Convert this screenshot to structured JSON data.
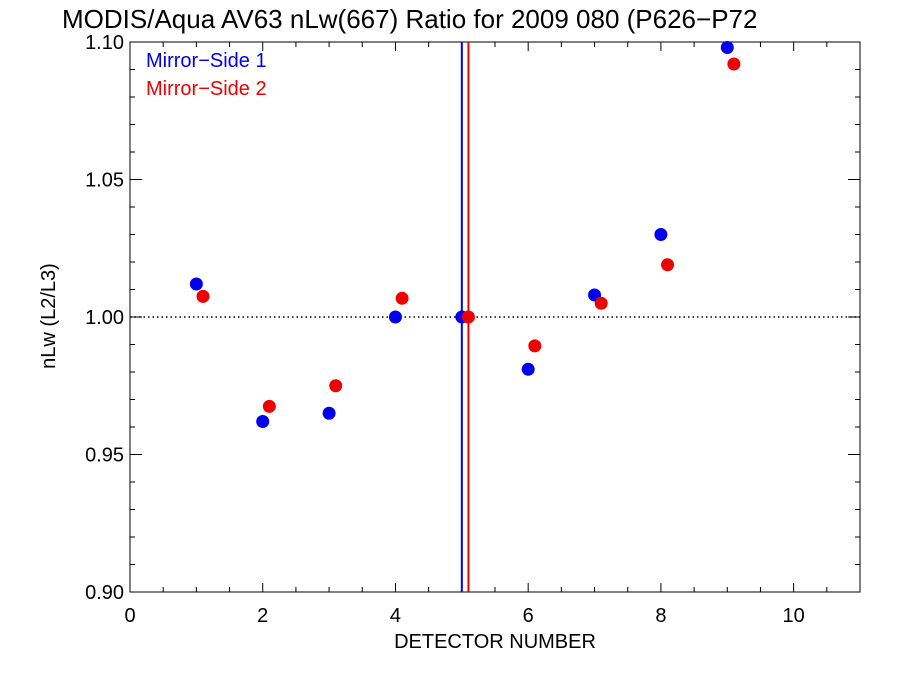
{
  "chart_data": {
    "type": "scatter",
    "title": "MODIS/Aqua AV63 nLw(667) Ratio for 2009 080 (P626−P72",
    "xlabel": "DETECTOR NUMBER",
    "ylabel": "nLw (L2/L3)",
    "xlim": [
      0,
      11
    ],
    "ylim": [
      0.9,
      1.1
    ],
    "x_ticks": [
      0,
      2,
      4,
      6,
      8,
      10
    ],
    "x_tick_labels": [
      "0",
      "2",
      "4",
      "6",
      "8",
      "10"
    ],
    "y_ticks": [
      0.9,
      0.95,
      1.0,
      1.05,
      1.1
    ],
    "y_tick_labels": [
      "0.90",
      "0.95",
      "1.00",
      "1.05",
      "1.10"
    ],
    "reference_line": {
      "y": 1.0,
      "style": "dotted"
    },
    "grid": false,
    "legend_position": "top-left",
    "series": [
      {
        "name": "Mirror−Side 1",
        "color": "#0000ee",
        "x": [
          1,
          2,
          3,
          4,
          5,
          6,
          7,
          8,
          9
        ],
        "y": [
          1.012,
          0.962,
          0.965,
          1.0,
          1.0,
          0.981,
          1.008,
          1.03,
          1.098
        ],
        "vline_x": 5.0
      },
      {
        "name": "Mirror−Side 2",
        "color": "#ee0000",
        "x": [
          1.1,
          2.1,
          3.1,
          4.1,
          5.1,
          6.1,
          7.1,
          8.1,
          9.1
        ],
        "y": [
          1.0075,
          0.9675,
          0.975,
          1.0068,
          1.0,
          0.9895,
          1.005,
          1.019,
          1.092
        ],
        "vline_x": 5.1
      }
    ]
  }
}
